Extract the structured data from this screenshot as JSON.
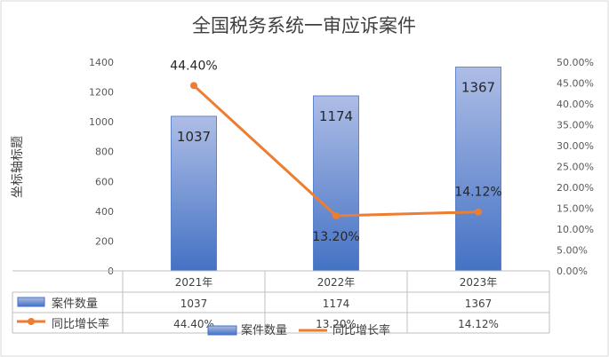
{
  "chart_data": {
    "type": "bar+line",
    "title": "全国税务系统一审应诉案件",
    "ylabel": "坐标轴标题",
    "categories": [
      "2021年",
      "2022年",
      "2023年"
    ],
    "ylim_left": [
      0,
      1400
    ],
    "left_ticks": [
      "0",
      "200",
      "400",
      "600",
      "800",
      "1000",
      "1200",
      "1400"
    ],
    "ylim_right": [
      0,
      0.5
    ],
    "right_ticks": [
      "0.00%",
      "5.00%",
      "10.00%",
      "15.00%",
      "20.00%",
      "25.00%",
      "30.00%",
      "35.00%",
      "40.00%",
      "45.00%",
      "50.00%"
    ],
    "series": [
      {
        "name": "案件数量",
        "type": "bar",
        "axis": "left",
        "values": [
          1037,
          1174,
          1367
        ],
        "labels": [
          "1037",
          "1174",
          "1367"
        ],
        "color": "#4472c4"
      },
      {
        "name": "同比增长率",
        "type": "line",
        "axis": "right",
        "values": [
          0.444,
          0.132,
          0.1412
        ],
        "labels": [
          "44.40%",
          "13.20%",
          "14.12%"
        ],
        "color": "#ed7d31"
      }
    ],
    "data_table": {
      "rows": [
        {
          "name": "案件数量",
          "cells": [
            "1037",
            "1174",
            "1367"
          ]
        },
        {
          "name": "同比增长率",
          "cells": [
            "44.40%",
            "13.20%",
            "14.12%"
          ]
        }
      ]
    },
    "legend": {
      "position": "bottom",
      "items": [
        "案件数量",
        "同比增长率"
      ]
    },
    "grid": false
  }
}
